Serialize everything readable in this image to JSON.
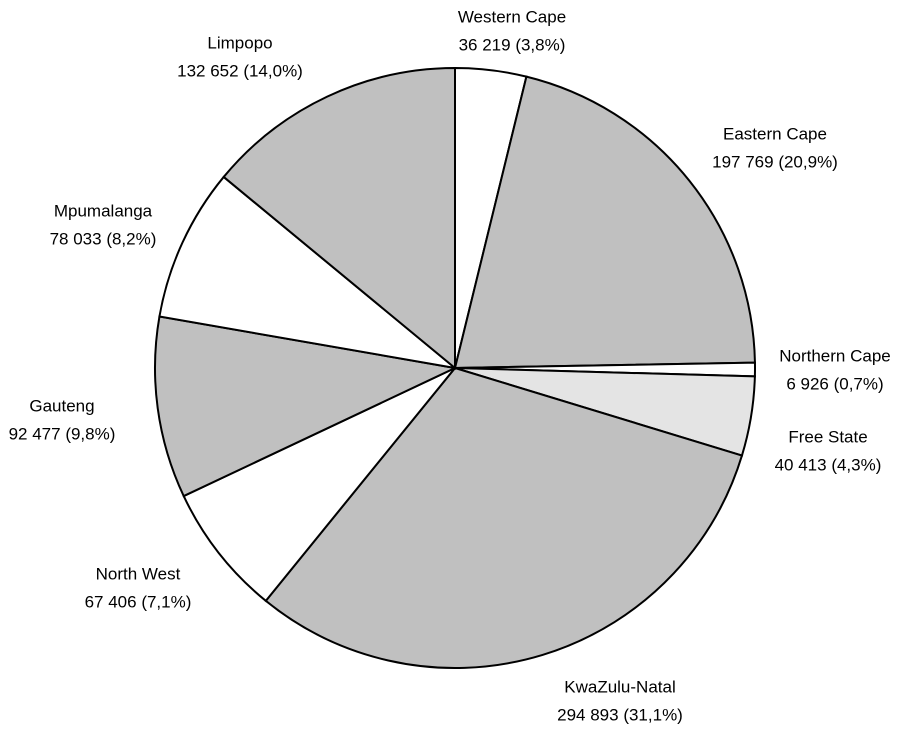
{
  "chart_data": {
    "type": "pie",
    "categories": [
      "Western Cape",
      "Eastern Cape",
      "Northern Cape",
      "Free State",
      "KwaZulu-Natal",
      "North West",
      "Gauteng",
      "Mpumalanga",
      "Limpopo"
    ],
    "values": [
      36219,
      197769,
      6926,
      40413,
      294893,
      67406,
      92477,
      78033,
      132652
    ],
    "value_labels": [
      "36 219 (3,8%)",
      "197 769 (20,9%)",
      "6 926 (0,7%)",
      "40 413 (4,3%)",
      "294 893 (31,1%)",
      "67 406 (7,1%)",
      "92 477 (9,8%)",
      "78 033 (8,2%)",
      "132 652 (14,0%)"
    ],
    "colors": [
      "#ffffff",
      "#c0c0c0",
      "#ffffff",
      "#e4e4e4",
      "#c0c0c0",
      "#ffffff",
      "#c0c0c0",
      "#ffffff",
      "#c0c0c0"
    ]
  }
}
